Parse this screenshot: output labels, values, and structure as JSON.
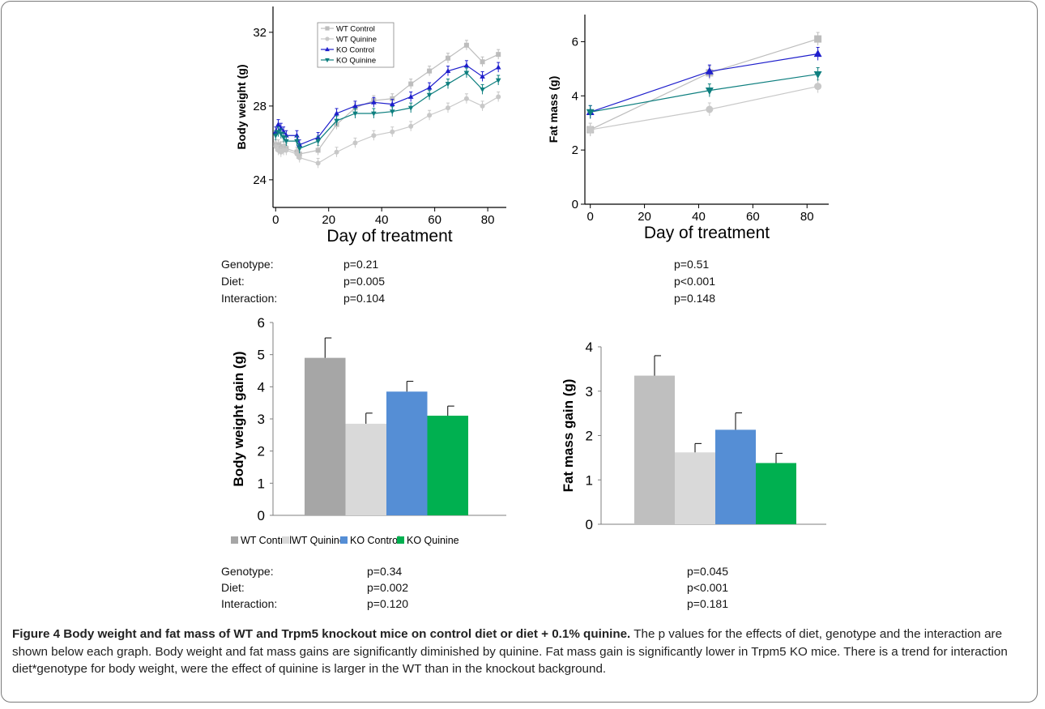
{
  "chart_data": [
    {
      "type": "line",
      "title": "",
      "xlabel": "Day of treatment",
      "ylabel": "Body weight (g)",
      "xlim": [
        -1,
        87
      ],
      "ylim": [
        22.5,
        33.4
      ],
      "x_ticks": [
        "0",
        "20",
        "40",
        "60",
        "80"
      ],
      "y_ticks": [
        "24",
        "28",
        "32"
      ],
      "legend_position": "top-left",
      "series": [
        {
          "name": "WT Control",
          "marker": "square",
          "color": "#bdbdbd",
          "x": [
            0,
            1,
            2,
            3,
            4,
            8,
            9,
            16,
            23,
            30,
            37,
            44,
            51,
            58,
            65,
            72,
            78,
            84
          ],
          "y": [
            25.9,
            25.9,
            25.8,
            25.8,
            25.7,
            25.5,
            25.4,
            25.6,
            27.0,
            27.9,
            28.3,
            28.4,
            29.2,
            29.9,
            30.6,
            31.3,
            30.4,
            30.8
          ]
        },
        {
          "name": "WT Quinine",
          "marker": "circle",
          "color": "#c8c8c8",
          "x": [
            0,
            1,
            2,
            3,
            4,
            8,
            9,
            16,
            23,
            30,
            37,
            44,
            51,
            58,
            65,
            72,
            78,
            84
          ],
          "y": [
            25.8,
            25.6,
            25.5,
            25.6,
            25.6,
            25.4,
            25.2,
            24.9,
            25.5,
            26.0,
            26.4,
            26.6,
            26.9,
            27.5,
            27.9,
            28.4,
            28.0,
            28.5
          ]
        },
        {
          "name": "KO Control",
          "marker": "triangle-up",
          "color": "#1e1ecc",
          "x": [
            0,
            1,
            2,
            3,
            4,
            8,
            9,
            16,
            23,
            30,
            37,
            44,
            51,
            58,
            65,
            72,
            78,
            84
          ],
          "y": [
            26.6,
            27.0,
            26.8,
            26.6,
            26.4,
            26.4,
            25.9,
            26.3,
            27.6,
            28.0,
            28.2,
            28.1,
            28.5,
            29.0,
            29.9,
            30.2,
            29.6,
            30.1
          ]
        },
        {
          "name": "KO Quinine",
          "marker": "triangle-down",
          "color": "#0e7f7f",
          "x": [
            0,
            1,
            2,
            3,
            4,
            8,
            9,
            16,
            23,
            30,
            37,
            44,
            51,
            58,
            65,
            72,
            78,
            84
          ],
          "y": [
            26.4,
            26.6,
            26.5,
            26.3,
            26.1,
            26.1,
            25.7,
            26.1,
            27.2,
            27.6,
            27.6,
            27.7,
            27.9,
            28.6,
            29.2,
            29.8,
            28.9,
            29.4
          ]
        }
      ]
    },
    {
      "type": "line",
      "title": "",
      "xlabel": "Day of treatment",
      "ylabel": "Fat mass (g)",
      "xlim": [
        -2,
        88
      ],
      "ylim": [
        0,
        7
      ],
      "x_ticks": [
        "0",
        "20",
        "40",
        "60",
        "80"
      ],
      "y_ticks": [
        "0",
        "2",
        "4",
        "6"
      ],
      "series": [
        {
          "name": "WT Control",
          "marker": "square",
          "color": "#bdbdbd",
          "x": [
            0,
            44,
            84
          ],
          "y": [
            2.75,
            4.85,
            6.1
          ]
        },
        {
          "name": "WT Quinine",
          "marker": "circle",
          "color": "#c8c8c8",
          "x": [
            0,
            44,
            84
          ],
          "y": [
            2.75,
            3.5,
            4.35
          ]
        },
        {
          "name": "KO Control",
          "marker": "triangle-up",
          "color": "#1e1ecc",
          "x": [
            0,
            44,
            84
          ],
          "y": [
            3.4,
            4.9,
            5.55
          ]
        },
        {
          "name": "KO Quinine",
          "marker": "triangle-down",
          "color": "#0e7f7f",
          "x": [
            0,
            44,
            84
          ],
          "y": [
            3.4,
            4.2,
            4.8
          ]
        }
      ]
    },
    {
      "type": "bar",
      "title": "",
      "xlabel": "",
      "ylabel": "Body weight gain (g)",
      "ylim": [
        0,
        6
      ],
      "y_ticks": [
        "0",
        "1",
        "2",
        "3",
        "4",
        "5",
        "6"
      ],
      "categories": [
        "WT Control",
        "WT Quinine",
        "KO Control",
        "KO Quinine"
      ],
      "values": [
        4.9,
        2.85,
        3.85,
        3.1
      ],
      "errors": [
        0.62,
        0.33,
        0.32,
        0.3
      ],
      "colors": [
        "#a6a6a6",
        "#d9d9d9",
        "#558ed5",
        "#00b050"
      ],
      "legend_position": "bottom"
    },
    {
      "type": "bar",
      "title": "",
      "xlabel": "",
      "ylabel": "Fat mass gain (g)",
      "ylim": [
        0,
        4
      ],
      "y_ticks": [
        "0",
        "1",
        "2",
        "3",
        "4"
      ],
      "categories": [
        "WT Control",
        "WT Quinine",
        "KO Control",
        "KO Quinine"
      ],
      "values": [
        3.35,
        1.62,
        2.13,
        1.38
      ],
      "errors": [
        0.45,
        0.2,
        0.38,
        0.22
      ],
      "colors": [
        "#bfbfbf",
        "#d9d9d9",
        "#558ed5",
        "#00b050"
      ]
    }
  ],
  "stats": {
    "labels": [
      "Genotype:",
      "Diet:",
      "Interaction:"
    ],
    "top_left": [
      "p=0.21",
      "p=0.005",
      "p=0.104"
    ],
    "top_right": [
      "p=0.51",
      "p<0.001",
      "p=0.148"
    ],
    "bottom_left": [
      "p=0.34",
      "p=0.002",
      "p=0.120"
    ],
    "bottom_right": [
      "p=0.045",
      "p<0.001",
      "p=0.181"
    ]
  },
  "caption": {
    "bold": "Figure 4 Body weight and fat mass of WT and Trpm5 knockout mice on control diet or diet + 0.1% quinine.",
    "text": " The p values for the effects of diet, genotype and the interaction are shown below each graph. Body weight and fat mass gains are significantly diminished by quinine. Fat mass gain is significantly lower in Trpm5 KO mice. There is a trend for interaction diet*genotype for body weight, were the effect of quinine is larger in the WT than in the knockout background."
  }
}
